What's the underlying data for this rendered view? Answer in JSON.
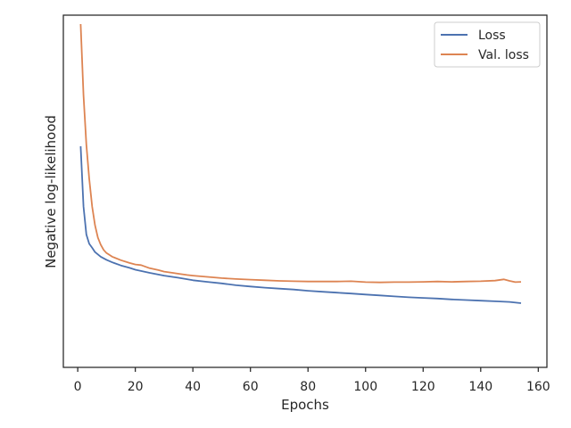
{
  "chart_data": {
    "type": "line",
    "title": "",
    "xlabel": "Epochs",
    "ylabel": "Negative log-likelihood",
    "xlim": [
      -5,
      163
    ],
    "ylim": [
      0,
      100
    ],
    "xticks": [
      0,
      20,
      40,
      60,
      80,
      100,
      120,
      140,
      160
    ],
    "yticks_shown": false,
    "grid": false,
    "legend_position": "top-right",
    "series": [
      {
        "name": "Loss",
        "color": "#4c72b0",
        "x": [
          1,
          2,
          3,
          4,
          5,
          6,
          8,
          10,
          12,
          15,
          18,
          20,
          25,
          30,
          35,
          40,
          45,
          50,
          55,
          60,
          65,
          70,
          75,
          80,
          85,
          90,
          95,
          100,
          105,
          110,
          115,
          120,
          125,
          130,
          135,
          140,
          145,
          150,
          154
        ],
        "y": [
          60.5,
          41.0,
          32.0,
          29.0,
          27.7,
          26.3,
          24.8,
          23.8,
          23.0,
          22.0,
          21.2,
          20.6,
          19.6,
          18.7,
          18.0,
          17.2,
          16.7,
          16.2,
          15.6,
          15.2,
          14.8,
          14.5,
          14.2,
          13.8,
          13.5,
          13.2,
          12.9,
          12.6,
          12.3,
          12.0,
          11.7,
          11.5,
          11.3,
          11.0,
          10.8,
          10.6,
          10.4,
          10.2,
          9.8
        ]
      },
      {
        "name": "Val. loss",
        "color": "#dd8452",
        "x": [
          1,
          2,
          3,
          4,
          5,
          6,
          7,
          8,
          9,
          10,
          12,
          15,
          18,
          20,
          22,
          25,
          28,
          30,
          33,
          35,
          38,
          40,
          45,
          50,
          55,
          60,
          65,
          70,
          75,
          80,
          85,
          90,
          95,
          100,
          105,
          110,
          115,
          120,
          125,
          130,
          135,
          140,
          145,
          148,
          150,
          152,
          154
        ],
        "y": [
          100,
          77.0,
          61.0,
          50.0,
          41.0,
          35.0,
          31.0,
          28.7,
          27.0,
          26.0,
          24.8,
          23.7,
          22.8,
          22.3,
          22.1,
          21.1,
          20.5,
          20.0,
          19.6,
          19.3,
          18.9,
          18.7,
          18.3,
          17.9,
          17.6,
          17.4,
          17.2,
          17.0,
          16.9,
          16.8,
          16.8,
          16.8,
          16.9,
          16.6,
          16.5,
          16.6,
          16.6,
          16.7,
          16.8,
          16.7,
          16.8,
          16.9,
          17.1,
          17.5,
          17.0,
          16.6,
          16.7
        ]
      }
    ]
  }
}
